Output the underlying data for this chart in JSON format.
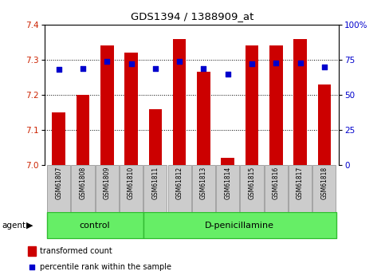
{
  "title": "GDS1394 / 1388909_at",
  "samples": [
    "GSM61807",
    "GSM61808",
    "GSM61809",
    "GSM61810",
    "GSM61811",
    "GSM61812",
    "GSM61813",
    "GSM61814",
    "GSM61815",
    "GSM61816",
    "GSM61817",
    "GSM61818"
  ],
  "transformed_count": [
    7.15,
    7.2,
    7.34,
    7.32,
    7.16,
    7.36,
    7.265,
    7.02,
    7.34,
    7.34,
    7.36,
    7.23
  ],
  "percentile_rank": [
    68,
    69,
    74,
    72,
    69,
    74,
    69,
    65,
    72,
    73,
    73,
    70
  ],
  "ylim_left": [
    7.0,
    7.4
  ],
  "ylim_right": [
    0,
    100
  ],
  "yticks_left": [
    7.0,
    7.1,
    7.2,
    7.3,
    7.4
  ],
  "yticks_right": [
    0,
    25,
    50,
    75,
    100
  ],
  "ytick_labels_right": [
    "0",
    "25",
    "50",
    "75",
    "100%"
  ],
  "bar_color": "#cc0000",
  "dot_color": "#0000cc",
  "control_label": "control",
  "treatment_label": "D-penicillamine",
  "group_bg_color": "#66ee66",
  "tick_label_bg": "#cccccc",
  "bar_width": 0.55,
  "agent_label": "agent",
  "legend_bar_label": "transformed count",
  "legend_dot_label": "percentile rank within the sample"
}
